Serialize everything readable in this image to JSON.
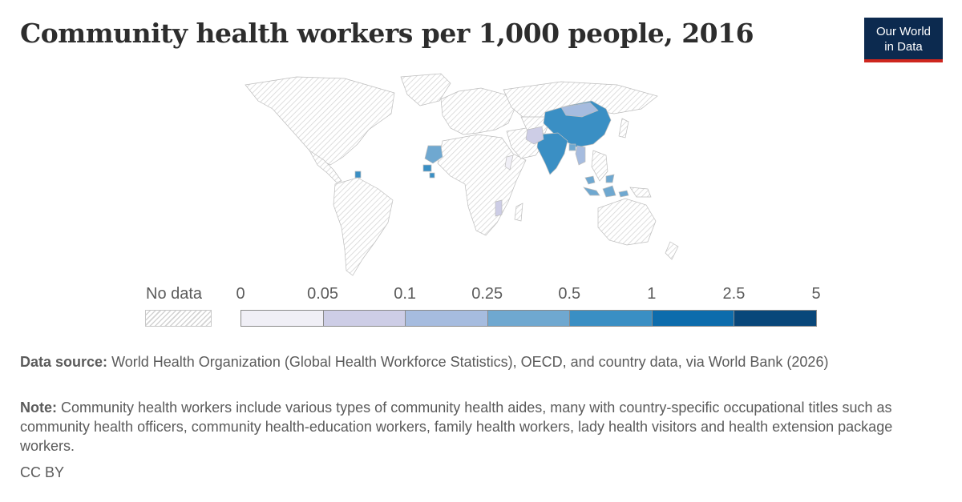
{
  "title": "Community health workers per 1,000 people, 2016",
  "logo": {
    "line1": "Our World",
    "line2": "in Data"
  },
  "legend": {
    "no_data_label": "No data",
    "ticks": [
      "0",
      "0.05",
      "0.1",
      "0.25",
      "0.5",
      "1",
      "2.5",
      "5"
    ],
    "colors": [
      "#f0eff6",
      "#cdcde6",
      "#a6bcdf",
      "#6fa8d0",
      "#3a8fc4",
      "#0d6cac",
      "#08477a"
    ]
  },
  "source": {
    "label": "Data source:",
    "text": "World Health Organization (Global Health Workforce Statistics), OECD, and country data, via World Bank (2026)"
  },
  "note": {
    "label": "Note:",
    "text": "Community health workers include various types of community health aides, many with country-specific occupational titles such as community health officers, community health-education workers, family health workers, lady health visitors and health extension package workers."
  },
  "license": "CC BY",
  "map_data": {
    "no_data_fill": "hatched-grey",
    "countries": [
      {
        "name": "China",
        "bin": "0.5–1"
      },
      {
        "name": "India",
        "bin": "0.5–1"
      },
      {
        "name": "Mongolia",
        "bin": "0.1–0.25"
      },
      {
        "name": "Pakistan",
        "bin": "0.05–0.1"
      },
      {
        "name": "Bangladesh",
        "bin": "0.25–0.5"
      },
      {
        "name": "Myanmar",
        "bin": "0.1–0.25"
      },
      {
        "name": "Malaysia",
        "bin": "0.25–0.5"
      },
      {
        "name": "Indonesia",
        "bin": "0.25–0.5"
      },
      {
        "name": "Mali",
        "bin": "0.25–0.5"
      },
      {
        "name": "Guinea",
        "bin": "0.5–1"
      },
      {
        "name": "Liberia",
        "bin": "0.5–1"
      },
      {
        "name": "Guyana",
        "bin": "0.5–1"
      },
      {
        "name": "Somalia",
        "bin": "0–0.05"
      },
      {
        "name": "Mozambique",
        "bin": "0.05–0.1"
      }
    ]
  }
}
